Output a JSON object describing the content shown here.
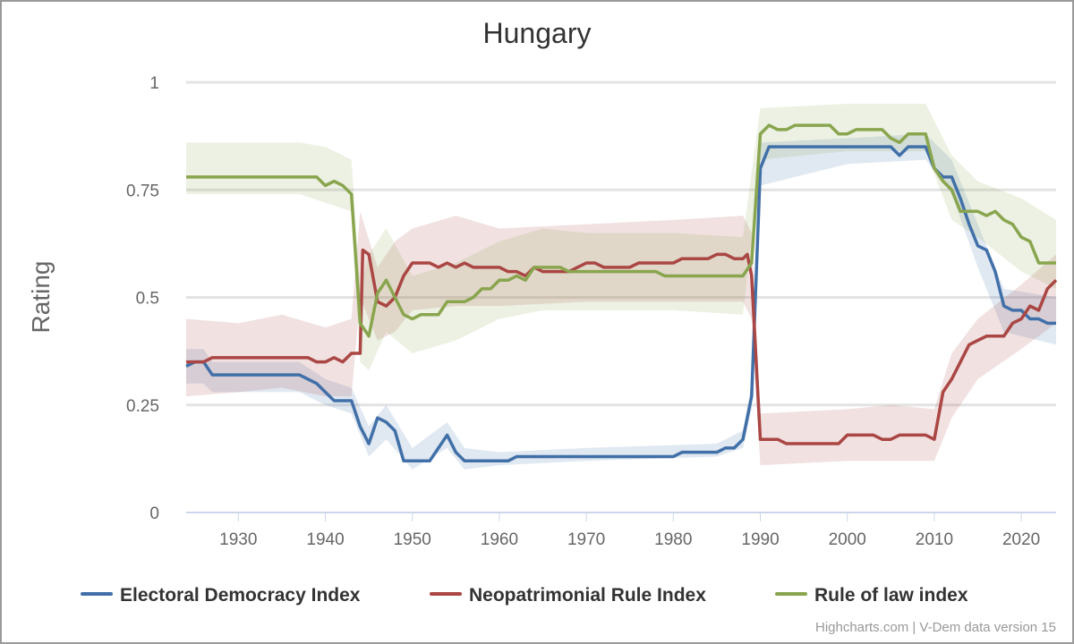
{
  "chart_data": {
    "type": "line",
    "title": "Hungary",
    "xlabel": "",
    "ylabel": "Rating",
    "xlim": [
      1924,
      2024
    ],
    "ylim": [
      0,
      1
    ],
    "x_ticks": [
      "1930",
      "1940",
      "1950",
      "1960",
      "1970",
      "1980",
      "1990",
      "2000",
      "2010",
      "2020"
    ],
    "y_ticks": [
      "0",
      "0.25",
      "0.5",
      "0.75",
      "1"
    ],
    "grid": true,
    "legend_position": "bottom",
    "credits": "Highcharts.com | V-Dem data version 15",
    "series": [
      {
        "name": "Electoral Democracy Index",
        "color": "#4170a8",
        "points": [
          [
            1924,
            0.34
          ],
          [
            1925,
            0.35
          ],
          [
            1926,
            0.35
          ],
          [
            1927,
            0.32
          ],
          [
            1937,
            0.32
          ],
          [
            1939,
            0.3
          ],
          [
            1940,
            0.28
          ],
          [
            1941,
            0.26
          ],
          [
            1943,
            0.26
          ],
          [
            1944,
            0.2
          ],
          [
            1945,
            0.16
          ],
          [
            1946,
            0.22
          ],
          [
            1947,
            0.21
          ],
          [
            1948,
            0.19
          ],
          [
            1949,
            0.12
          ],
          [
            1952,
            0.12
          ],
          [
            1954,
            0.18
          ],
          [
            1955,
            0.14
          ],
          [
            1956,
            0.12
          ],
          [
            1961,
            0.12
          ],
          [
            1962,
            0.13
          ],
          [
            1980,
            0.13
          ],
          [
            1981,
            0.14
          ],
          [
            1985,
            0.14
          ],
          [
            1986,
            0.15
          ],
          [
            1987,
            0.15
          ],
          [
            1988,
            0.17
          ],
          [
            1989,
            0.27
          ],
          [
            1990,
            0.8
          ],
          [
            1991,
            0.85
          ],
          [
            2005,
            0.85
          ],
          [
            2006,
            0.83
          ],
          [
            2007,
            0.85
          ],
          [
            2009,
            0.85
          ],
          [
            2010,
            0.8
          ],
          [
            2011,
            0.78
          ],
          [
            2012,
            0.78
          ],
          [
            2013,
            0.73
          ],
          [
            2014,
            0.67
          ],
          [
            2015,
            0.62
          ],
          [
            2016,
            0.61
          ],
          [
            2017,
            0.56
          ],
          [
            2018,
            0.48
          ],
          [
            2019,
            0.47
          ],
          [
            2020,
            0.47
          ],
          [
            2021,
            0.45
          ],
          [
            2022,
            0.45
          ],
          [
            2023,
            0.44
          ],
          [
            2024,
            0.44
          ]
        ],
        "band": [
          [
            1924,
            0.3,
            0.38
          ],
          [
            1926,
            0.3,
            0.38
          ],
          [
            1927,
            0.28,
            0.35
          ],
          [
            1937,
            0.28,
            0.35
          ],
          [
            1940,
            0.25,
            0.31
          ],
          [
            1943,
            0.23,
            0.29
          ],
          [
            1945,
            0.13,
            0.2
          ],
          [
            1947,
            0.17,
            0.25
          ],
          [
            1950,
            0.1,
            0.15
          ],
          [
            1954,
            0.15,
            0.21
          ],
          [
            1956,
            0.1,
            0.15
          ],
          [
            1960,
            0.11,
            0.14
          ],
          [
            1970,
            0.12,
            0.15
          ],
          [
            1985,
            0.13,
            0.16
          ],
          [
            1988,
            0.15,
            0.19
          ],
          [
            1989,
            0.24,
            0.3
          ],
          [
            1990,
            0.76,
            0.86
          ],
          [
            2000,
            0.81,
            0.87
          ],
          [
            2009,
            0.82,
            0.88
          ],
          [
            2012,
            0.74,
            0.82
          ],
          [
            2015,
            0.57,
            0.67
          ],
          [
            2018,
            0.42,
            0.52
          ],
          [
            2024,
            0.39,
            0.5
          ]
        ]
      },
      {
        "name": "Neopatrimonial Rule Index",
        "color": "#aa4643",
        "points": [
          [
            1924,
            0.35
          ],
          [
            1926,
            0.35
          ],
          [
            1927,
            0.36
          ],
          [
            1938,
            0.36
          ],
          [
            1939,
            0.35
          ],
          [
            1940,
            0.35
          ],
          [
            1941,
            0.36
          ],
          [
            1942,
            0.35
          ],
          [
            1943,
            0.37
          ],
          [
            1944,
            0.37
          ],
          [
            1944.3,
            0.61
          ],
          [
            1945,
            0.6
          ],
          [
            1946,
            0.49
          ],
          [
            1947,
            0.48
          ],
          [
            1948,
            0.5
          ],
          [
            1949,
            0.55
          ],
          [
            1950,
            0.58
          ],
          [
            1952,
            0.58
          ],
          [
            1953,
            0.57
          ],
          [
            1954,
            0.58
          ],
          [
            1955,
            0.57
          ],
          [
            1956,
            0.58
          ],
          [
            1957,
            0.57
          ],
          [
            1960,
            0.57
          ],
          [
            1961,
            0.56
          ],
          [
            1962,
            0.56
          ],
          [
            1963,
            0.55
          ],
          [
            1964,
            0.57
          ],
          [
            1965,
            0.56
          ],
          [
            1968,
            0.56
          ],
          [
            1969,
            0.57
          ],
          [
            1970,
            0.58
          ],
          [
            1971,
            0.58
          ],
          [
            1972,
            0.57
          ],
          [
            1975,
            0.57
          ],
          [
            1976,
            0.58
          ],
          [
            1980,
            0.58
          ],
          [
            1981,
            0.59
          ],
          [
            1984,
            0.59
          ],
          [
            1985,
            0.6
          ],
          [
            1986,
            0.6
          ],
          [
            1987,
            0.59
          ],
          [
            1988,
            0.59
          ],
          [
            1988.5,
            0.6
          ],
          [
            1989,
            0.55
          ],
          [
            1990,
            0.17
          ],
          [
            1992,
            0.17
          ],
          [
            1993,
            0.16
          ],
          [
            1999,
            0.16
          ],
          [
            2000,
            0.18
          ],
          [
            2003,
            0.18
          ],
          [
            2004,
            0.17
          ],
          [
            2005,
            0.17
          ],
          [
            2006,
            0.18
          ],
          [
            2009,
            0.18
          ],
          [
            2010,
            0.17
          ],
          [
            2011,
            0.28
          ],
          [
            2012,
            0.31
          ],
          [
            2013,
            0.35
          ],
          [
            2014,
            0.39
          ],
          [
            2015,
            0.4
          ],
          [
            2016,
            0.41
          ],
          [
            2018,
            0.41
          ],
          [
            2019,
            0.44
          ],
          [
            2020,
            0.45
          ],
          [
            2021,
            0.48
          ],
          [
            2022,
            0.47
          ],
          [
            2023,
            0.52
          ],
          [
            2024,
            0.54
          ]
        ],
        "band": [
          [
            1924,
            0.27,
            0.45
          ],
          [
            1930,
            0.28,
            0.44
          ],
          [
            1935,
            0.29,
            0.46
          ],
          [
            1940,
            0.27,
            0.43
          ],
          [
            1943,
            0.27,
            0.45
          ],
          [
            1944,
            0.5,
            0.7
          ],
          [
            1946,
            0.4,
            0.57
          ],
          [
            1948,
            0.42,
            0.63
          ],
          [
            1950,
            0.47,
            0.66
          ],
          [
            1955,
            0.48,
            0.69
          ],
          [
            1960,
            0.48,
            0.66
          ],
          [
            1970,
            0.49,
            0.67
          ],
          [
            1980,
            0.49,
            0.68
          ],
          [
            1988,
            0.49,
            0.69
          ],
          [
            1989,
            0.45,
            0.65
          ],
          [
            1990,
            0.11,
            0.23
          ],
          [
            2000,
            0.12,
            0.24
          ],
          [
            2005,
            0.12,
            0.25
          ],
          [
            2010,
            0.12,
            0.24
          ],
          [
            2012,
            0.22,
            0.37
          ],
          [
            2015,
            0.31,
            0.45
          ],
          [
            2020,
            0.38,
            0.53
          ],
          [
            2024,
            0.44,
            0.6
          ]
        ]
      },
      {
        "name": "Rule of law index",
        "color": "#89a54e",
        "points": [
          [
            1924,
            0.78
          ],
          [
            1939,
            0.78
          ],
          [
            1940,
            0.76
          ],
          [
            1941,
            0.77
          ],
          [
            1942,
            0.76
          ],
          [
            1943,
            0.74
          ],
          [
            1944,
            0.44
          ],
          [
            1945,
            0.41
          ],
          [
            1946,
            0.51
          ],
          [
            1947,
            0.54
          ],
          [
            1948,
            0.5
          ],
          [
            1949,
            0.46
          ],
          [
            1950,
            0.45
          ],
          [
            1951,
            0.46
          ],
          [
            1953,
            0.46
          ],
          [
            1954,
            0.49
          ],
          [
            1956,
            0.49
          ],
          [
            1957,
            0.5
          ],
          [
            1958,
            0.52
          ],
          [
            1959,
            0.52
          ],
          [
            1960,
            0.54
          ],
          [
            1961,
            0.54
          ],
          [
            1962,
            0.55
          ],
          [
            1963,
            0.54
          ],
          [
            1964,
            0.57
          ],
          [
            1967,
            0.57
          ],
          [
            1968,
            0.56
          ],
          [
            1978,
            0.56
          ],
          [
            1979,
            0.55
          ],
          [
            1988,
            0.55
          ],
          [
            1989,
            0.58
          ],
          [
            1990,
            0.88
          ],
          [
            1991,
            0.9
          ],
          [
            1992,
            0.89
          ],
          [
            1993,
            0.89
          ],
          [
            1994,
            0.9
          ],
          [
            1998,
            0.9
          ],
          [
            1999,
            0.88
          ],
          [
            2000,
            0.88
          ],
          [
            2001,
            0.89
          ],
          [
            2004,
            0.89
          ],
          [
            2005,
            0.87
          ],
          [
            2006,
            0.86
          ],
          [
            2007,
            0.88
          ],
          [
            2009,
            0.88
          ],
          [
            2010,
            0.8
          ],
          [
            2011,
            0.77
          ],
          [
            2012,
            0.75
          ],
          [
            2013,
            0.7
          ],
          [
            2015,
            0.7
          ],
          [
            2016,
            0.69
          ],
          [
            2017,
            0.7
          ],
          [
            2018,
            0.68
          ],
          [
            2019,
            0.67
          ],
          [
            2020,
            0.64
          ],
          [
            2021,
            0.63
          ],
          [
            2022,
            0.58
          ],
          [
            2024,
            0.58
          ]
        ],
        "band": [
          [
            1924,
            0.74,
            0.86
          ],
          [
            1937,
            0.74,
            0.86
          ],
          [
            1940,
            0.72,
            0.85
          ],
          [
            1943,
            0.7,
            0.82
          ],
          [
            1944,
            0.35,
            0.52
          ],
          [
            1945,
            0.33,
            0.6
          ],
          [
            1947,
            0.42,
            0.66
          ],
          [
            1950,
            0.37,
            0.55
          ],
          [
            1955,
            0.4,
            0.58
          ],
          [
            1960,
            0.45,
            0.63
          ],
          [
            1965,
            0.47,
            0.66
          ],
          [
            1970,
            0.47,
            0.65
          ],
          [
            1980,
            0.47,
            0.65
          ],
          [
            1988,
            0.46,
            0.64
          ],
          [
            1990,
            0.82,
            0.94
          ],
          [
            2000,
            0.84,
            0.95
          ],
          [
            2009,
            0.84,
            0.95
          ],
          [
            2012,
            0.68,
            0.83
          ],
          [
            2015,
            0.64,
            0.77
          ],
          [
            2020,
            0.56,
            0.73
          ],
          [
            2024,
            0.52,
            0.68
          ]
        ]
      }
    ]
  }
}
